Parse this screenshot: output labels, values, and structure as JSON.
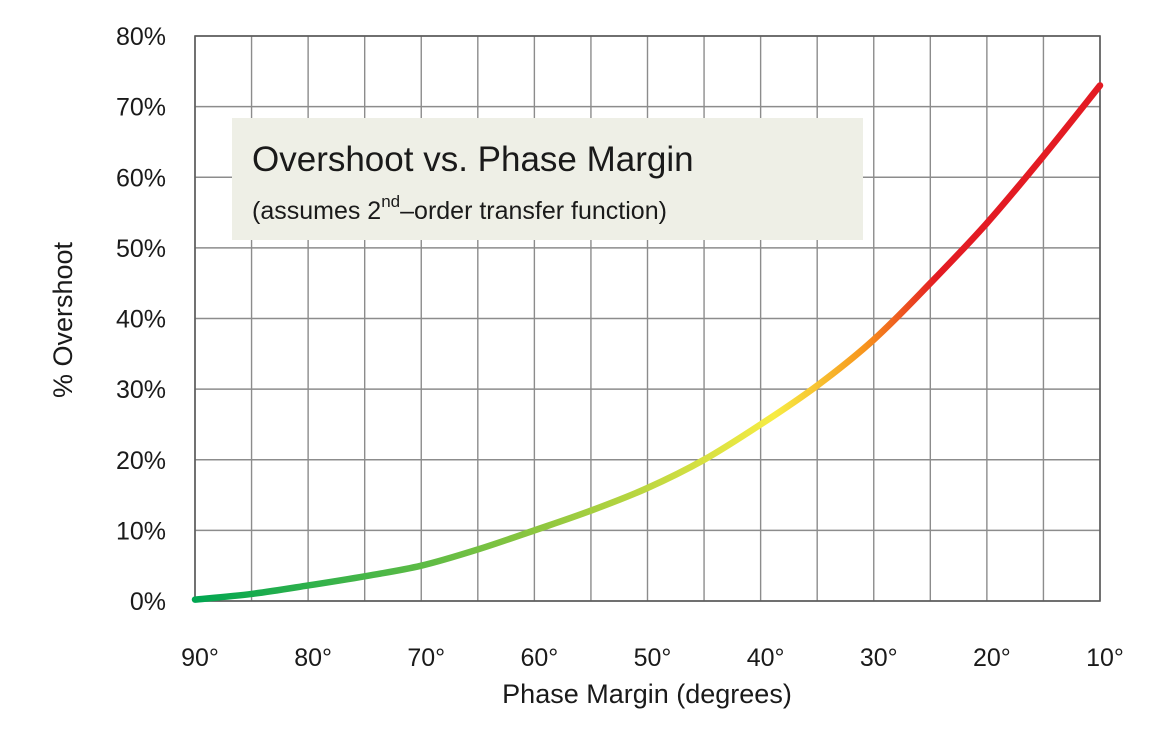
{
  "chart_data": {
    "type": "line",
    "xlabel": "Phase Margin (degrees)",
    "ylabel": "% Overshoot",
    "xlim": [
      90,
      10
    ],
    "ylim": [
      0,
      80
    ],
    "x_reversed": true,
    "grid": true,
    "x_ticks": [
      90,
      85,
      80,
      75,
      70,
      65,
      60,
      55,
      50,
      45,
      40,
      35,
      30,
      25,
      20,
      15,
      10
    ],
    "x_tick_labels": [
      "90°",
      "",
      "80°",
      "",
      "70°",
      "",
      "60°",
      "",
      "50°",
      "",
      "40°",
      "",
      "30°",
      "",
      "20°",
      "",
      "10°"
    ],
    "y_ticks": [
      0,
      10,
      20,
      30,
      40,
      50,
      60,
      70,
      80
    ],
    "y_tick_labels": [
      "0%",
      "10%",
      "20%",
      "30%",
      "40%",
      "50%",
      "60%",
      "70%",
      "80%"
    ],
    "annotation": {
      "title": "Overshoot vs. Phase Margin",
      "subtitle_prefix": "(assumes 2",
      "subtitle_sup": "nd",
      "subtitle_suffix": "–order transfer function)",
      "background_color": "#eeefe6"
    },
    "series": [
      {
        "x": [
          90,
          85,
          80,
          75,
          70,
          65,
          60,
          55,
          50,
          45,
          40,
          35,
          30,
          25,
          20,
          15,
          10
        ],
        "values": [
          0.2,
          1.0,
          2.2,
          3.5,
          5.0,
          7.3,
          10.0,
          12.8,
          16.0,
          20.0,
          25.0,
          30.5,
          37.0,
          45.0,
          53.5,
          63.0,
          73.0
        ]
      }
    ],
    "color_gradient": [
      "#00a651",
      "#8dc63f",
      "#f7ec43",
      "#f7941d",
      "#e31b23"
    ],
    "colors": {
      "grid": "#8c8c8c",
      "frame": "#5a5a5a",
      "text": "#1a1a1a"
    }
  }
}
